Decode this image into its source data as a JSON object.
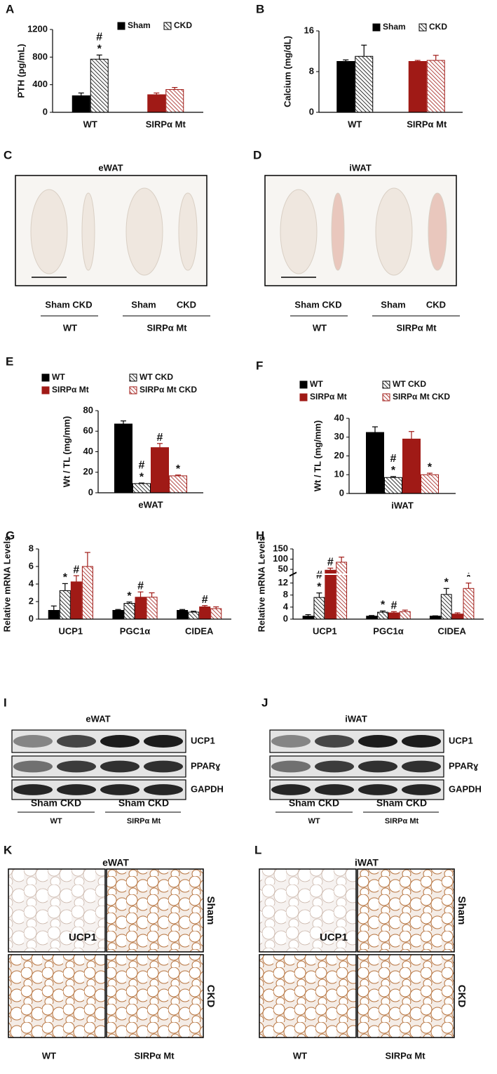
{
  "chart_data": [
    {
      "panel": "A",
      "type": "bar",
      "y_label": "PTH (pg/mL)",
      "categories": [
        "WT",
        "SIRPα Mt"
      ],
      "ylim": [
        0,
        1200
      ],
      "yticks": [
        0,
        400,
        800,
        1200
      ],
      "series": [
        {
          "name": "Sham",
          "color": [
            "#000000",
            "#a01a16"
          ],
          "hatch": false,
          "values": [
            240,
            255
          ],
          "errors": [
            40,
            25
          ]
        },
        {
          "name": "CKD",
          "color": [
            "#000000",
            "#a01a16"
          ],
          "hatch": true,
          "values": [
            770,
            330
          ],
          "errors": [
            60,
            30
          ],
          "annotations": [
            [
              "#",
              "*"
            ],
            []
          ]
        }
      ]
    },
    {
      "panel": "B",
      "type": "bar",
      "y_label": "Calcium (mg/dL)",
      "categories": [
        "WT",
        "SIRPα Mt"
      ],
      "ylim": [
        0,
        16
      ],
      "yticks": [
        0,
        8,
        16
      ],
      "series": [
        {
          "name": "Sham",
          "color": [
            "#000000",
            "#a01a16"
          ],
          "hatch": false,
          "values": [
            10,
            10
          ],
          "errors": [
            0.3,
            0.2
          ]
        },
        {
          "name": "CKD",
          "color": [
            "#000000",
            "#a01a16"
          ],
          "hatch": true,
          "values": [
            11,
            10.2
          ],
          "errors": [
            2.2,
            1
          ]
        }
      ]
    },
    {
      "panel": "E",
      "type": "bar",
      "y_label": "Wt / TL (mg/mm)",
      "categories": [
        "eWAT"
      ],
      "ylim": [
        0,
        80
      ],
      "yticks": [
        0,
        20,
        40,
        60,
        80
      ],
      "series": [
        {
          "name": "WT",
          "color": "#000000",
          "hatch": false,
          "values": [
            67
          ],
          "errors": [
            3
          ]
        },
        {
          "name": "WT CKD",
          "color": "#000000",
          "hatch": true,
          "values": [
            9
          ],
          "errors": [
            0.5
          ],
          "annotations": [
            [
              "#",
              "*"
            ]
          ]
        },
        {
          "name": "SIRPα Mt",
          "color": "#a01a16",
          "hatch": false,
          "values": [
            44
          ],
          "errors": [
            4
          ],
          "annotations": [
            [
              "#"
            ]
          ]
        },
        {
          "name": "SIRPα Mt CKD",
          "color": "#a01a16",
          "hatch": true,
          "values": [
            16.5
          ],
          "errors": [
            0.8
          ],
          "annotations": [
            [
              "*"
            ]
          ]
        }
      ]
    },
    {
      "panel": "F",
      "type": "bar",
      "y_label": "Wt / TL (mg/mm)",
      "categories": [
        "iWAT"
      ],
      "ylim": [
        0,
        40
      ],
      "yticks": [
        0,
        10,
        20,
        30,
        40
      ],
      "series": [
        {
          "name": "WT",
          "color": "#000000",
          "hatch": false,
          "values": [
            32.5
          ],
          "errors": [
            3
          ]
        },
        {
          "name": "WT CKD",
          "color": "#000000",
          "hatch": true,
          "values": [
            8.5
          ],
          "errors": [
            0.5
          ],
          "annotations": [
            [
              "#",
              "*"
            ]
          ]
        },
        {
          "name": "SIRPα Mt",
          "color": "#a01a16",
          "hatch": false,
          "values": [
            29
          ],
          "errors": [
            4
          ]
        },
        {
          "name": "SIRPα Mt CKD",
          "color": "#a01a16",
          "hatch": true,
          "values": [
            10
          ],
          "errors": [
            0.8
          ],
          "annotations": [
            [
              "*"
            ]
          ]
        }
      ]
    },
    {
      "panel": "G",
      "type": "bar",
      "y_label": "Relative mRNA Levels",
      "categories": [
        "UCP1",
        "PGC1α",
        "CIDEA"
      ],
      "ylim": [
        0,
        8
      ],
      "yticks": [
        0,
        2,
        4,
        6,
        8
      ],
      "series": [
        {
          "color": "#000000",
          "hatch": false,
          "values": [
            1,
            1,
            1
          ],
          "errors": [
            0.5,
            0.1,
            0.1
          ]
        },
        {
          "color": "#000000",
          "hatch": true,
          "values": [
            3.25,
            1.8,
            0.8
          ],
          "errors": [
            0.8,
            0.15,
            0.1
          ],
          "annotations": [
            [
              "*"
            ],
            [
              "*"
            ],
            []
          ]
        },
        {
          "color": "#a01a16",
          "hatch": false,
          "values": [
            4.25,
            2.5,
            1.4
          ],
          "errors": [
            0.7,
            0.6,
            0.15
          ],
          "annotations": [
            [
              "#"
            ],
            [
              "#"
            ],
            [
              "#"
            ]
          ]
        },
        {
          "color": "#a01a16",
          "hatch": true,
          "values": [
            6,
            2.5,
            1.2
          ],
          "errors": [
            1.6,
            0.5,
            0.2
          ]
        }
      ]
    },
    {
      "panel": "H",
      "type": "bar",
      "y_label": "Relative mRNA Levels",
      "categories": [
        "UCP1",
        "PGC1α",
        "CIDEA"
      ],
      "ylim": [
        0,
        150
      ],
      "ybreak": [
        14,
        40
      ],
      "yticks": [
        0,
        4,
        8,
        12,
        50,
        100,
        150
      ],
      "series": [
        {
          "color": "#000000",
          "hatch": false,
          "values": [
            1,
            1,
            1
          ],
          "errors": [
            0.5,
            0.2,
            0.1
          ]
        },
        {
          "color": "#000000",
          "hatch": true,
          "values": [
            7.2,
            2.3,
            8.2
          ],
          "errors": [
            1.5,
            0.4,
            2
          ],
          "annotations": [
            [
              "#",
              "*"
            ],
            [
              "*"
            ],
            [
              "*"
            ]
          ]
        },
        {
          "color": "#a01a16",
          "hatch": false,
          "values": [
            46,
            2.1,
            1.7
          ],
          "errors": [
            10,
            0.4,
            0.4
          ],
          "annotations": [
            [
              "#"
            ],
            [
              "#"
            ],
            []
          ]
        },
        {
          "color": "#a01a16",
          "hatch": true,
          "values": [
            85,
            2.5,
            10.2
          ],
          "errors": [
            25,
            0.5,
            1.8
          ],
          "annotations": [
            [],
            [],
            [
              "*"
            ]
          ]
        }
      ]
    }
  ],
  "photo_panels": [
    {
      "letter": "C",
      "title": "eWAT",
      "sample_labels": [
        "Sham CKD",
        "Sham",
        "CKD"
      ],
      "genotypes": [
        "WT",
        "SIRPα Mt"
      ]
    },
    {
      "letter": "D",
      "title": "iWAT",
      "sample_labels": [
        "Sham CKD",
        "Sham",
        "CKD"
      ],
      "genotypes": [
        "WT",
        "SIRPα Mt"
      ]
    }
  ],
  "blot_panels": [
    {
      "letter": "I",
      "title": "eWAT",
      "bands": [
        "UCP1",
        "PPARɣ",
        "GAPDH"
      ],
      "sample_labels": [
        "Sham CKD",
        "Sham CKD"
      ],
      "genotypes": [
        "WT",
        "SIRPα Mt"
      ]
    },
    {
      "letter": "J",
      "title": "iWAT",
      "bands": [
        "UCP1",
        "PPARɣ",
        "GAPDH"
      ],
      "sample_labels": [
        "Sham CKD",
        "Sham CKD"
      ],
      "genotypes": [
        "WT",
        "SIRPα Mt"
      ]
    }
  ],
  "histology_panels": [
    {
      "letter": "K",
      "title": "eWAT",
      "stain": "UCP1",
      "rows": [
        "Sham",
        "CKD"
      ],
      "columns": [
        "WT",
        "SIRPα Mt"
      ]
    },
    {
      "letter": "L",
      "title": "iWAT",
      "stain": "UCP1",
      "rows": [
        "Sham",
        "CKD"
      ],
      "columns": [
        "WT",
        "SIRPα Mt"
      ]
    }
  ]
}
